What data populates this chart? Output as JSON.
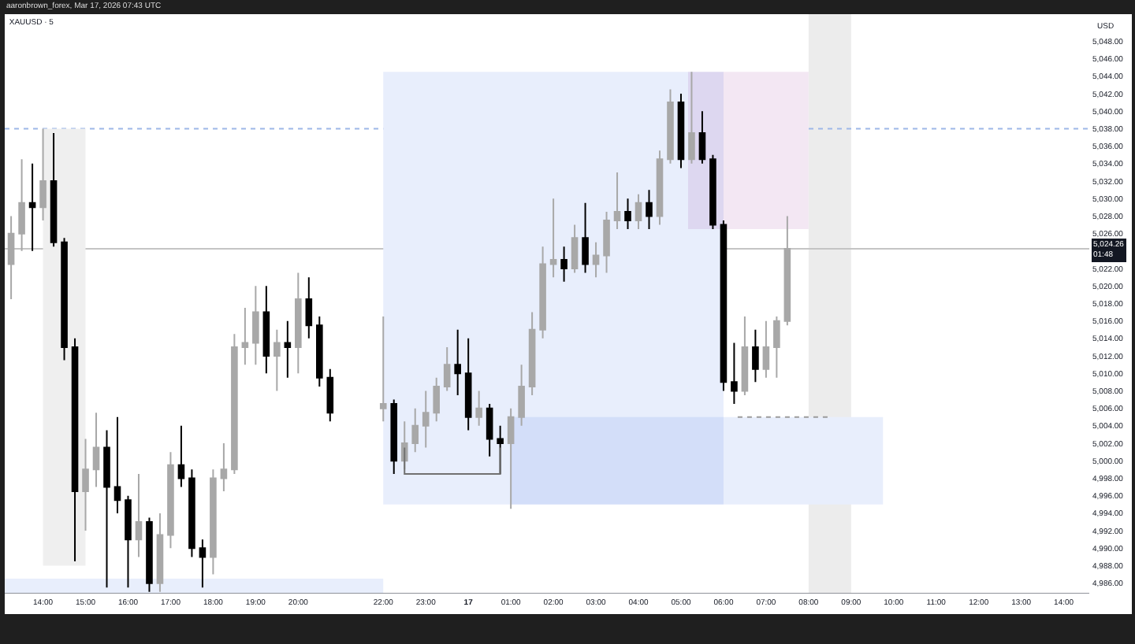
{
  "chart_data": {
    "type": "candlestick",
    "title": "XAUUSD · 5",
    "ylabel": "USD",
    "annotations": [
      "aaronbrown_forex, Mar 17, 2026 07:43 UTC"
    ],
    "x": [
      "2026-03-16T13:15",
      "2026-03-16T13:30",
      "2026-03-16T13:45",
      "2026-03-16T14:00",
      "2026-03-16T14:15",
      "2026-03-16T14:30",
      "2026-03-16T14:45",
      "2026-03-16T15:00",
      "2026-03-16T15:15",
      "2026-03-16T15:30",
      "2026-03-16T15:45",
      "2026-03-16T16:00",
      "2026-03-16T16:15",
      "2026-03-16T16:30",
      "2026-03-16T16:45",
      "2026-03-16T17:00",
      "2026-03-16T17:15",
      "2026-03-16T17:30",
      "2026-03-16T17:45",
      "2026-03-16T18:00",
      "2026-03-16T18:15",
      "2026-03-16T18:30",
      "2026-03-16T18:45",
      "2026-03-16T19:00",
      "2026-03-16T19:15",
      "2026-03-16T19:30",
      "2026-03-16T19:45",
      "2026-03-16T20:00",
      "2026-03-16T20:15",
      "2026-03-16T20:30",
      "2026-03-16T20:45",
      "2026-03-16T22:00",
      "2026-03-16T22:15",
      "2026-03-16T22:30",
      "2026-03-16T22:45",
      "2026-03-16T23:00",
      "2026-03-16T23:15",
      "2026-03-16T23:30",
      "2026-03-16T23:45",
      "2026-03-17T00:00",
      "2026-03-17T00:15",
      "2026-03-17T00:30",
      "2026-03-17T00:45",
      "2026-03-17T01:00",
      "2026-03-17T01:15",
      "2026-03-17T01:30",
      "2026-03-17T01:45",
      "2026-03-17T02:00",
      "2026-03-17T02:15",
      "2026-03-17T02:30",
      "2026-03-17T02:45",
      "2026-03-17T03:00",
      "2026-03-17T03:15",
      "2026-03-17T03:30",
      "2026-03-17T03:45",
      "2026-03-17T04:00",
      "2026-03-17T04:15",
      "2026-03-17T04:30",
      "2026-03-17T04:45",
      "2026-03-17T05:00",
      "2026-03-17T05:15",
      "2026-03-17T05:30",
      "2026-03-17T05:45",
      "2026-03-17T06:00",
      "2026-03-17T06:15",
      "2026-03-17T06:30",
      "2026-03-17T06:45",
      "2026-03-17T07:00",
      "2026-03-17T07:15",
      "2026-03-17T07:30"
    ],
    "ohlc": [
      [
        5022.5,
        5028,
        5018.5,
        5026
      ],
      [
        5026,
        5034.5,
        5024,
        5029.5
      ],
      [
        5029.5,
        5034,
        5024,
        5029
      ],
      [
        5029,
        5038,
        5027.5,
        5032
      ],
      [
        5032,
        5037.5,
        5024.5,
        5025
      ],
      [
        5025,
        5025.5,
        5011.5,
        5013
      ],
      [
        5013,
        5014,
        4988.5,
        4996.5
      ],
      [
        4996.5,
        5002.5,
        4992,
        4999
      ],
      [
        4999,
        5005.5,
        4997,
        5001.5
      ],
      [
        5001.5,
        5003.5,
        4985.5,
        4997
      ],
      [
        4997,
        5005,
        4994,
        4995.5
      ],
      [
        4995.5,
        4996,
        4985.5,
        4991
      ],
      [
        4991,
        4998.5,
        4989,
        4993
      ],
      [
        4993,
        4993.5,
        4985,
        4986
      ],
      [
        4986,
        4994,
        4985,
        4991.5
      ],
      [
        4991.5,
        5001,
        4990,
        4999.5
      ],
      [
        4999.5,
        5004,
        4997,
        4998
      ],
      [
        4998,
        4999,
        4989,
        4990
      ],
      [
        4990,
        4991,
        4985.5,
        4989
      ],
      [
        4989,
        4999,
        4987,
        4998
      ],
      [
        4998,
        5002,
        4996.5,
        4999
      ],
      [
        4999,
        5014.5,
        4998.5,
        5013
      ],
      [
        5013,
        5017.5,
        5011,
        5013.5
      ],
      [
        5013.5,
        5020,
        5011,
        5017
      ],
      [
        5017,
        5020,
        5010,
        5012
      ],
      [
        5012,
        5015,
        5008,
        5013.5
      ],
      [
        5013.5,
        5016,
        5009.5,
        5013
      ],
      [
        5013,
        5021.5,
        5010,
        5018.5
      ],
      [
        5018.5,
        5021,
        5014,
        5015.5
      ],
      [
        5015.5,
        5016.5,
        5008.5,
        5009.5
      ],
      [
        5009.5,
        5010.5,
        5004.5,
        5005.5
      ],
      [
        5006,
        5016.5,
        5004.5,
        5006.5
      ],
      [
        5006.5,
        5007,
        4998.5,
        5000
      ],
      [
        5000,
        5004.5,
        4999,
        5002
      ],
      [
        5002,
        5006,
        5001,
        5004
      ],
      [
        5004,
        5008,
        5001.5,
        5005.5
      ],
      [
        5005.5,
        5009.5,
        5004.5,
        5008.5
      ],
      [
        5008.5,
        5013,
        5008,
        5011
      ],
      [
        5011,
        5015,
        5007.5,
        5010
      ],
      [
        5010,
        5014,
        5003.5,
        5005
      ],
      [
        5005,
        5008,
        5004,
        5006
      ],
      [
        5006,
        5006.5,
        5000.5,
        5002.5
      ],
      [
        5002.5,
        5004,
        4998.5,
        5002
      ],
      [
        5002,
        5006,
        4994.5,
        5005
      ],
      [
        5005,
        5011,
        5004,
        5008.5
      ],
      [
        5008.5,
        5017,
        5007.5,
        5015
      ],
      [
        5015,
        5024.5,
        5014,
        5022.5
      ],
      [
        5022.5,
        5030,
        5021,
        5023
      ],
      [
        5023,
        5024.5,
        5020.5,
        5022
      ],
      [
        5022,
        5027,
        5021.5,
        5025.5
      ],
      [
        5025.5,
        5029.5,
        5021.5,
        5022.5
      ],
      [
        5022.5,
        5025,
        5021,
        5023.5
      ],
      [
        5023.5,
        5028.5,
        5021.5,
        5027.5
      ],
      [
        5027.5,
        5033,
        5026.5,
        5028.5
      ],
      [
        5028.5,
        5030,
        5026.5,
        5027.5
      ],
      [
        5027.5,
        5030.5,
        5026.5,
        5029.5
      ],
      [
        5029.5,
        5031,
        5026.5,
        5028
      ],
      [
        5028,
        5035.5,
        5027,
        5034.5
      ],
      [
        5034.5,
        5042.5,
        5034,
        5041
      ],
      [
        5041,
        5042,
        5033.5,
        5034.5
      ],
      [
        5034.5,
        5044.5,
        5034,
        5037.5
      ],
      [
        5037.5,
        5040,
        5034,
        5034.5
      ],
      [
        5034.5,
        5035,
        5026.5,
        5027
      ],
      [
        5027,
        5027.5,
        5008,
        5009
      ],
      [
        5009,
        5013.5,
        5006.5,
        5008
      ],
      [
        5008,
        5016.5,
        5007.5,
        5013
      ],
      [
        5013,
        5015,
        5009,
        5010.5
      ],
      [
        5010.5,
        5016,
        5009.5,
        5013
      ],
      [
        5013,
        5016.5,
        5009.5,
        5016
      ],
      [
        5016,
        5028,
        5015.5,
        5024.26
      ]
    ],
    "colors": [
      "#a8a8a8",
      "#a8a8a8",
      "#000000",
      "#a8a8a8",
      "#000000",
      "#000000",
      "#000000",
      "#a8a8a8",
      "#a8a8a8",
      "#000000",
      "#000000",
      "#000000",
      "#a8a8a8",
      "#000000",
      "#a8a8a8",
      "#a8a8a8",
      "#000000",
      "#000000",
      "#000000",
      "#a8a8a8",
      "#a8a8a8",
      "#a8a8a8",
      "#a8a8a8",
      "#a8a8a8",
      "#000000",
      "#a8a8a8",
      "#000000",
      "#a8a8a8",
      "#000000",
      "#000000",
      "#000000",
      "#a8a8a8",
      "#000000",
      "#a8a8a8",
      "#a8a8a8",
      "#a8a8a8",
      "#a8a8a8",
      "#a8a8a8",
      "#000000",
      "#000000",
      "#a8a8a8",
      "#000000",
      "#000000",
      "#a8a8a8",
      "#a8a8a8",
      "#a8a8a8",
      "#a8a8a8",
      "#a8a8a8",
      "#000000",
      "#a8a8a8",
      "#000000",
      "#a8a8a8",
      "#a8a8a8",
      "#a8a8a8",
      "#000000",
      "#a8a8a8",
      "#000000",
      "#a8a8a8",
      "#a8a8a8",
      "#000000",
      "#a8a8a8",
      "#000000",
      "#000000",
      "#000000",
      "#000000",
      "#a8a8a8",
      "#000000",
      "#a8a8a8",
      "#a8a8a8",
      "#a8a8a8"
    ],
    "xlim": [
      "2026-03-16T13:06",
      "2026-03-17T14:36"
    ],
    "xticks": [
      {
        "value": "2026-03-16T14:00",
        "label": "14:00"
      },
      {
        "value": "2026-03-16T15:00",
        "label": "15:00"
      },
      {
        "value": "2026-03-16T16:00",
        "label": "16:00"
      },
      {
        "value": "2026-03-16T17:00",
        "label": "17:00"
      },
      {
        "value": "2026-03-16T18:00",
        "label": "18:00"
      },
      {
        "value": "2026-03-16T19:00",
        "label": "19:00"
      },
      {
        "value": "2026-03-16T20:00",
        "label": "20:00"
      },
      {
        "value": "2026-03-16T22:00",
        "label": "22:00"
      },
      {
        "value": "2026-03-16T23:00",
        "label": "23:00"
      },
      {
        "value": "2026-03-17T00:00",
        "label": "17"
      },
      {
        "value": "2026-03-17T01:00",
        "label": "01:00"
      },
      {
        "value": "2026-03-17T02:00",
        "label": "02:00"
      },
      {
        "value": "2026-03-17T03:00",
        "label": "03:00"
      },
      {
        "value": "2026-03-17T04:00",
        "label": "04:00"
      },
      {
        "value": "2026-03-17T05:00",
        "label": "05:00"
      },
      {
        "value": "2026-03-17T06:00",
        "label": "06:00"
      },
      {
        "value": "2026-03-17T07:00",
        "label": "07:00"
      },
      {
        "value": "2026-03-17T08:00",
        "label": "08:00"
      },
      {
        "value": "2026-03-17T09:00",
        "label": "09:00"
      },
      {
        "value": "2026-03-17T10:00",
        "label": "10:00"
      },
      {
        "value": "2026-03-17T11:00",
        "label": "11:00"
      },
      {
        "value": "2026-03-17T12:00",
        "label": "12:00"
      },
      {
        "value": "2026-03-17T13:00",
        "label": "13:00"
      },
      {
        "value": "2026-03-17T14:00",
        "label": "14:00"
      }
    ],
    "ylim": [
      4984.8,
      5051.1
    ],
    "yticks": [
      {
        "value": 4986,
        "label": "4,986.00"
      },
      {
        "value": 4988,
        "label": "4,988.00"
      },
      {
        "value": 4990,
        "label": "4,990.00"
      },
      {
        "value": 4992,
        "label": "4,992.00"
      },
      {
        "value": 4994,
        "label": "4,994.00"
      },
      {
        "value": 4996,
        "label": "4,996.00"
      },
      {
        "value": 4998,
        "label": "4,998.00"
      },
      {
        "value": 5000,
        "label": "5,000.00"
      },
      {
        "value": 5002,
        "label": "5,002.00"
      },
      {
        "value": 5004,
        "label": "5,004.00"
      },
      {
        "value": 5006,
        "label": "5,006.00"
      },
      {
        "value": 5008,
        "label": "5,008.00"
      },
      {
        "value": 5010,
        "label": "5,010.00"
      },
      {
        "value": 5012,
        "label": "5,012.00"
      },
      {
        "value": 5014,
        "label": "5,014.00"
      },
      {
        "value": 5016,
        "label": "5,016.00"
      },
      {
        "value": 5018,
        "label": "5,018.00"
      },
      {
        "value": 5020,
        "label": "5,020.00"
      },
      {
        "value": 5022,
        "label": "5,022.00"
      },
      {
        "value": 5026,
        "label": "5,026.00"
      },
      {
        "value": 5028,
        "label": "5,028.00"
      },
      {
        "value": 5030,
        "label": "5,030.00"
      },
      {
        "value": 5032,
        "label": "5,032.00"
      },
      {
        "value": 5034,
        "label": "5,034.00"
      },
      {
        "value": 5036,
        "label": "5,036.00"
      },
      {
        "value": 5038,
        "label": "5,038.00"
      },
      {
        "value": 5040,
        "label": "5,040.00"
      },
      {
        "value": 5042,
        "label": "5,042.00"
      },
      {
        "value": 5044,
        "label": "5,044.00"
      },
      {
        "value": 5046,
        "label": "5,046.00"
      },
      {
        "value": 5048,
        "label": "5,048.00"
      }
    ],
    "series": [
      {
        "type": "line",
        "x": [
          "2026-03-16T13:06",
          "2026-03-16T22:00"
        ],
        "values": [
          null,
          null
        ],
        "lower": [
          4984.8,
          4984.8
        ],
        "upper": [
          4986.5,
          4986.5
        ],
        "color": "#e8eefc"
      },
      {
        "type": "line",
        "x": [
          "2026-03-16T14:00",
          "2026-03-16T15:00"
        ],
        "values": [
          null,
          null
        ],
        "lower": [
          4988,
          4988
        ],
        "upper": [
          5038,
          5038
        ],
        "color": "#efefef"
      },
      {
        "type": "line",
        "x": [
          "2026-03-16T22:00",
          "2026-03-17T06:00"
        ],
        "values": [
          null,
          null
        ],
        "lower": [
          4995,
          4995
        ],
        "upper": [
          5044.5,
          5044.5
        ],
        "color": "#e8eefc"
      },
      {
        "type": "line",
        "x": [
          "2026-03-17T01:00",
          "2026-03-17T09:45"
        ],
        "values": [
          null,
          null
        ],
        "lower": [
          4995,
          4995
        ],
        "upper": [
          5005,
          5005
        ],
        "color": "#e8eefc"
      },
      {
        "type": "line",
        "x": [
          "2026-03-17T05:10",
          "2026-03-17T08:00"
        ],
        "values": [
          null,
          null
        ],
        "lower": [
          5026.5,
          5026.5
        ],
        "upper": [
          5044.5,
          5044.5
        ],
        "color": "#f3e7f3"
      },
      {
        "type": "line",
        "x": [
          "2026-03-17T06:20",
          "2026-03-17T08:30"
        ],
        "values": [
          5005,
          5005
        ],
        "color": "#9c9c9c",
        "line_style": "dotted"
      },
      {
        "type": "line",
        "x": [
          "2026-03-16T22:30",
          "2026-03-16T22:30",
          "2026-03-17T00:45",
          "2026-03-17T00:45"
        ],
        "values": [
          5001.5,
          4998.5,
          4998.5,
          5001.5
        ],
        "color": "#707070"
      }
    ],
    "bands": [
      {
        "axis": "x",
        "from": "2026-03-17T08:00",
        "to": "2026-03-17T09:00",
        "color": "#ececec"
      }
    ],
    "ref_lines": [
      {
        "axis": "y",
        "value": 5038,
        "color": "#9db7e8",
        "line_style": "dotted"
      },
      {
        "axis": "y",
        "value": 5024.26,
        "label": "5,024.26\n01:48",
        "color": "#c4c4c4"
      }
    ]
  }
}
